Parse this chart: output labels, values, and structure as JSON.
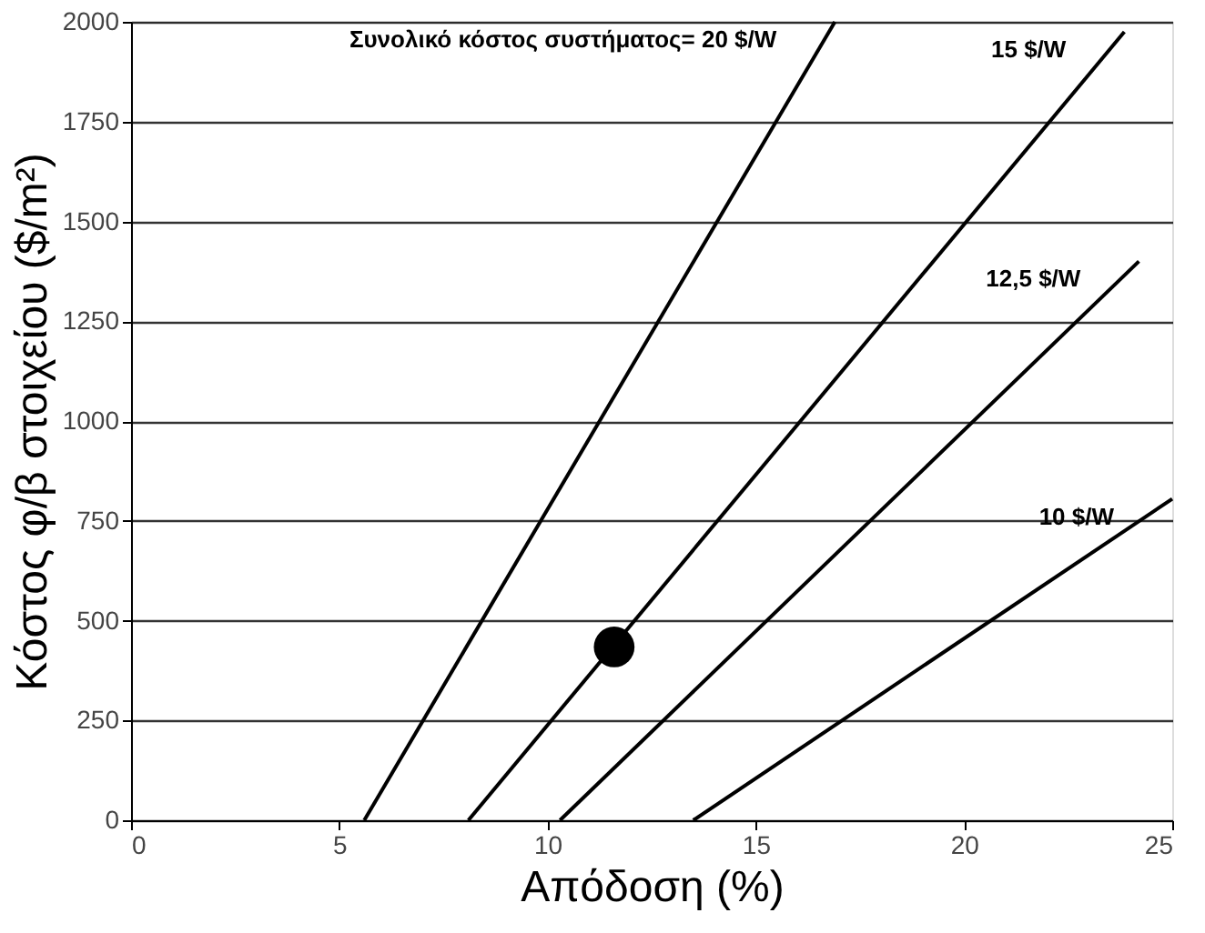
{
  "chart_data": {
    "type": "line",
    "xlabel": "Απόδοση (%)",
    "ylabel": "Κόστος φ/β στοιχείου ($/m²)",
    "xlim": [
      0,
      25
    ],
    "xticks": [
      0,
      5,
      10,
      15,
      20,
      25
    ],
    "ylim": [
      0,
      2000
    ],
    "yticks": [
      0,
      250,
      500,
      750,
      1000,
      1250,
      1500,
      1750,
      2000
    ],
    "grid": "y",
    "line_style": "solid",
    "series": [
      {
        "name": "Συνολικό κόστος συστήματος= 20 $/W",
        "color": "#000000",
        "x": [
          5.6,
          16.9
        ],
        "values": [
          0,
          2000
        ]
      },
      {
        "name": "15 $/W",
        "color": "#000000",
        "x": [
          8.1,
          23.85
        ],
        "values": [
          0,
          1975
        ]
      },
      {
        "name": "12,5 $/W",
        "color": "#000000",
        "x": [
          10.3,
          24.2
        ],
        "values": [
          0,
          1400
        ]
      },
      {
        "name": "10 $/W",
        "color": "#000000",
        "x": [
          13.5,
          25
        ],
        "values": [
          0,
          805
        ]
      },
      {
        "type": "scatter",
        "color": "#000000",
        "marker": "circle",
        "x": [
          11.6
        ],
        "values": [
          434
        ]
      }
    ]
  }
}
